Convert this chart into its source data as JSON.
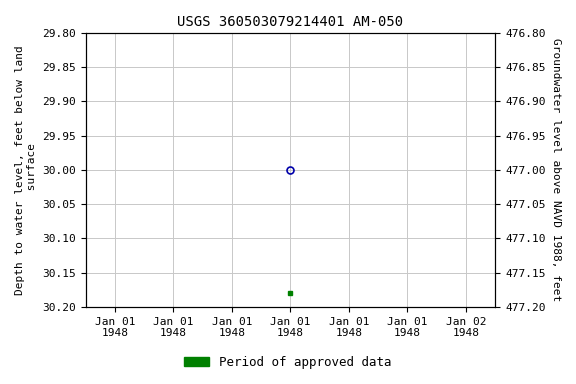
{
  "title": "USGS 360503079214401 AM-050",
  "ylabel_left": "Depth to water level, feet below land\n surface",
  "ylabel_right": "Groundwater level above NAVD 1988, feet",
  "ylim_left": [
    29.8,
    30.2
  ],
  "ylim_right": [
    477.2,
    476.8
  ],
  "yticks_left": [
    29.8,
    29.85,
    29.9,
    29.95,
    30.0,
    30.05,
    30.1,
    30.15,
    30.2
  ],
  "yticks_right": [
    477.2,
    477.15,
    477.1,
    477.05,
    477.0,
    476.95,
    476.9,
    476.85,
    476.8
  ],
  "data_open_circle": {
    "depth": 30.0
  },
  "data_green_square": {
    "depth": 30.18
  },
  "legend_label": "Period of approved data",
  "legend_color": "#008000",
  "open_circle_color": "#0000aa",
  "background_color": "#ffffff",
  "grid_color": "#c8c8c8",
  "title_fontsize": 10,
  "axis_fontsize": 8,
  "tick_fontsize": 8,
  "legend_fontsize": 9,
  "font_family": "DejaVu Sans Mono"
}
